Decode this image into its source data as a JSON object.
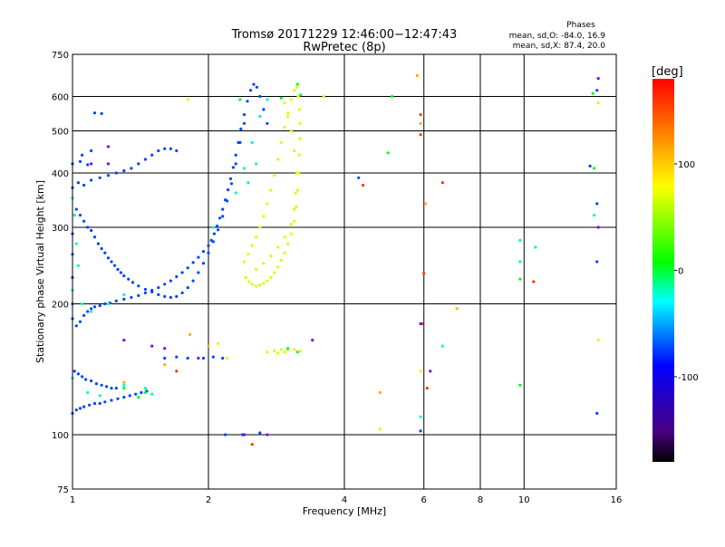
{
  "chart_data": {
    "type": "scatter",
    "title": "Tromsø 20171229 12:46:00−12:47:43",
    "subtitle": "RwPretec (8p)",
    "xlabel": "Frequency [MHz]",
    "ylabel": "Stationary phase Virtual Height [km]",
    "x_scale": "log",
    "y_scale": "log",
    "xlim": [
      1,
      16
    ],
    "ylim": [
      75,
      750
    ],
    "x_ticks": [
      1,
      2,
      4,
      6,
      8,
      10,
      16
    ],
    "x_tick_labels": [
      "1",
      "2",
      "4",
      "6",
      "8",
      "10",
      "16"
    ],
    "y_ticks": [
      75,
      100,
      200,
      300,
      400,
      500,
      600,
      750
    ],
    "y_tick_labels": [
      "75",
      "100",
      "200",
      "300",
      "400",
      "500",
      "600",
      "750"
    ],
    "grid": true,
    "info": {
      "heading": "Phases",
      "line1": "mean, sd,O: -84.0, 16.9",
      "line2": "mean, sd,X:  87.4, 20.0"
    },
    "colorbar": {
      "label": "[deg]",
      "range": [
        -180,
        180
      ],
      "ticks": [
        100,
        0,
        -100
      ],
      "tick_labels": [
        "100",
        "0",
        "-100"
      ],
      "colors": [
        "#000000",
        "#4b0082",
        "#0000ff",
        "#00ffff",
        "#00ff00",
        "#ffff00",
        "#ff8000",
        "#ff0000"
      ]
    },
    "series": [
      {
        "color_phase": -95,
        "points": [
          [
            1.0,
            290
          ],
          [
            1.0,
            260
          ],
          [
            1.0,
            230
          ],
          [
            1.0,
            200
          ],
          [
            1.0,
            185
          ],
          [
            1.02,
            178
          ],
          [
            1.04,
            182
          ],
          [
            1.06,
            188
          ],
          [
            1.08,
            192
          ],
          [
            1.1,
            195
          ],
          [
            1.12,
            197
          ],
          [
            1.15,
            198
          ],
          [
            1.18,
            200
          ],
          [
            1.21,
            201
          ],
          [
            1.25,
            203
          ],
          [
            1.3,
            205
          ],
          [
            1.35,
            207
          ],
          [
            1.4,
            209
          ],
          [
            1.45,
            212
          ],
          [
            1.5,
            215
          ],
          [
            1.55,
            218
          ],
          [
            1.6,
            222
          ],
          [
            1.65,
            226
          ],
          [
            1.7,
            231
          ],
          [
            1.75,
            236
          ],
          [
            1.8,
            242
          ],
          [
            1.85,
            249
          ],
          [
            1.9,
            256
          ],
          [
            1.95,
            264
          ],
          [
            2.0,
            272
          ],
          [
            2.03,
            280
          ],
          [
            2.06,
            290
          ],
          [
            2.09,
            302
          ],
          [
            2.12,
            315
          ],
          [
            2.15,
            330
          ],
          [
            2.18,
            347
          ],
          [
            2.21,
            366
          ],
          [
            2.24,
            388
          ],
          [
            2.27,
            412
          ],
          [
            2.3,
            440
          ],
          [
            2.33,
            470
          ],
          [
            2.36,
            505
          ],
          [
            2.4,
            545
          ],
          [
            2.44,
            585
          ],
          [
            2.48,
            620
          ],
          [
            2.52,
            640
          ],
          [
            2.56,
            630
          ],
          [
            2.6,
            600
          ],
          [
            2.65,
            560
          ],
          [
            2.7,
            520
          ],
          [
            1.0,
            370
          ],
          [
            1.03,
            380
          ],
          [
            1.06,
            375
          ],
          [
            1.1,
            385
          ],
          [
            1.15,
            390
          ],
          [
            1.2,
            395
          ],
          [
            1.25,
            400
          ],
          [
            1.3,
            405
          ],
          [
            1.35,
            410
          ],
          [
            1.4,
            420
          ],
          [
            1.45,
            430
          ],
          [
            1.5,
            440
          ],
          [
            1.55,
            450
          ],
          [
            1.6,
            455
          ],
          [
            1.65,
            455
          ],
          [
            1.7,
            450
          ],
          [
            1.01,
            140
          ],
          [
            1.03,
            138
          ],
          [
            1.05,
            136
          ],
          [
            1.07,
            134
          ],
          [
            1.1,
            133
          ],
          [
            1.13,
            131
          ],
          [
            1.16,
            130
          ],
          [
            1.19,
            129
          ],
          [
            1.22,
            128
          ],
          [
            1.25,
            128
          ],
          [
            1.0,
            112
          ],
          [
            1.02,
            114
          ],
          [
            1.04,
            115
          ],
          [
            1.06,
            116
          ],
          [
            1.09,
            117
          ],
          [
            1.12,
            118
          ],
          [
            1.15,
            118
          ],
          [
            1.18,
            119
          ],
          [
            1.22,
            120
          ],
          [
            1.26,
            121
          ],
          [
            1.3,
            122
          ],
          [
            1.34,
            123
          ],
          [
            1.38,
            124
          ],
          [
            1.42,
            125
          ],
          [
            1.46,
            126
          ],
          [
            1.0,
            420
          ],
          [
            1.04,
            425
          ],
          [
            1.08,
            418
          ],
          [
            1.12,
            550
          ],
          [
            1.16,
            548
          ],
          [
            2.18,
            100
          ],
          [
            2.38,
            100
          ],
          [
            2.6,
            101
          ],
          [
            1.6,
            150
          ],
          [
            1.7,
            151
          ],
          [
            1.8,
            150
          ],
          [
            1.95,
            150
          ],
          [
            2.05,
            151
          ],
          [
            2.15,
            150
          ],
          [
            4.3,
            390
          ],
          [
            5.9,
            102
          ],
          [
            14.5,
            620
          ],
          [
            14.5,
            250
          ],
          [
            14.5,
            112
          ],
          [
            14.0,
            415
          ],
          [
            14.5,
            340
          ],
          [
            1.05,
            440
          ],
          [
            1.1,
            450
          ],
          [
            1.02,
            330
          ],
          [
            1.04,
            320
          ],
          [
            1.06,
            310
          ],
          [
            1.08,
            300
          ],
          [
            1.1,
            295
          ],
          [
            1.12,
            285
          ],
          [
            1.14,
            275
          ],
          [
            1.16,
            268
          ],
          [
            1.18,
            262
          ],
          [
            1.2,
            255
          ],
          [
            1.22,
            250
          ],
          [
            1.24,
            245
          ],
          [
            1.26,
            240
          ],
          [
            1.28,
            236
          ],
          [
            1.3,
            232
          ],
          [
            1.33,
            228
          ],
          [
            1.36,
            224
          ],
          [
            1.4,
            220
          ],
          [
            1.45,
            216
          ],
          [
            1.5,
            213
          ],
          [
            1.55,
            210
          ],
          [
            1.6,
            208
          ],
          [
            1.65,
            207
          ],
          [
            1.7,
            208
          ],
          [
            1.75,
            212
          ],
          [
            1.8,
            218
          ],
          [
            1.85,
            226
          ],
          [
            1.9,
            236
          ],
          [
            1.95,
            248
          ],
          [
            2.0,
            262
          ],
          [
            2.05,
            278
          ],
          [
            2.1,
            296
          ],
          [
            2.15,
            318
          ],
          [
            2.2,
            345
          ],
          [
            2.25,
            378
          ],
          [
            2.3,
            420
          ],
          [
            2.35,
            470
          ],
          [
            2.4,
            520
          ]
        ]
      },
      {
        "color_phase": -20,
        "points": [
          [
            1.0,
            350
          ],
          [
            1.01,
            320
          ],
          [
            1.02,
            275
          ],
          [
            1.03,
            245
          ],
          [
            1.0,
            215
          ],
          [
            1.05,
            200
          ],
          [
            1.1,
            192
          ],
          [
            1.2,
            200
          ],
          [
            1.3,
            210
          ],
          [
            1.0,
            135
          ],
          [
            1.08,
            125
          ],
          [
            1.15,
            123
          ],
          [
            1.3,
            130
          ],
          [
            1.45,
            128
          ],
          [
            1.5,
            124
          ],
          [
            2.3,
            360
          ],
          [
            2.4,
            410
          ],
          [
            2.5,
            470
          ],
          [
            2.6,
            540
          ],
          [
            2.7,
            590
          ],
          [
            2.55,
            420
          ],
          [
            2.45,
            380
          ],
          [
            2.05,
            300
          ],
          [
            9.8,
            280
          ],
          [
            9.8,
            250
          ],
          [
            10.6,
            270
          ],
          [
            14.3,
            320
          ],
          [
            6.6,
            160
          ],
          [
            5.9,
            110
          ]
        ]
      },
      {
        "color_phase": 95,
        "points": [
          [
            2.42,
            230
          ],
          [
            2.46,
            225
          ],
          [
            2.5,
            222
          ],
          [
            2.55,
            220
          ],
          [
            2.6,
            221
          ],
          [
            2.65,
            223
          ],
          [
            2.7,
            226
          ],
          [
            2.75,
            230
          ],
          [
            2.8,
            236
          ],
          [
            2.85,
            243
          ],
          [
            2.9,
            252
          ],
          [
            2.95,
            262
          ],
          [
            3.0,
            275
          ],
          [
            3.05,
            290
          ],
          [
            3.1,
            310
          ],
          [
            3.13,
            335
          ],
          [
            3.15,
            365
          ],
          [
            3.17,
            400
          ],
          [
            3.18,
            440
          ],
          [
            3.19,
            480
          ],
          [
            3.19,
            520
          ],
          [
            3.18,
            560
          ],
          [
            3.16,
            600
          ],
          [
            3.14,
            630
          ],
          [
            2.4,
            250
          ],
          [
            2.45,
            260
          ],
          [
            2.5,
            272
          ],
          [
            2.55,
            285
          ],
          [
            2.6,
            300
          ],
          [
            2.65,
            318
          ],
          [
            2.7,
            340
          ],
          [
            2.75,
            365
          ],
          [
            2.8,
            395
          ],
          [
            2.85,
            430
          ],
          [
            2.9,
            470
          ],
          [
            2.95,
            510
          ],
          [
            3.0,
            550
          ],
          [
            3.05,
            590
          ],
          [
            3.1,
            620
          ],
          [
            2.55,
            240
          ],
          [
            2.65,
            248
          ],
          [
            2.75,
            258
          ],
          [
            2.85,
            270
          ],
          [
            2.95,
            285
          ],
          [
            3.05,
            305
          ],
          [
            3.1,
            330
          ],
          [
            3.12,
            360
          ],
          [
            3.14,
            400
          ],
          [
            3.1,
            450
          ],
          [
            3.05,
            500
          ],
          [
            3.0,
            540
          ],
          [
            2.95,
            580
          ],
          [
            2.7,
            155
          ],
          [
            2.8,
            156
          ],
          [
            2.9,
            157
          ],
          [
            3.0,
            157
          ],
          [
            3.1,
            157
          ],
          [
            3.2,
            156
          ],
          [
            2.85,
            154
          ],
          [
            2.95,
            155
          ],
          [
            4.8,
            103
          ],
          [
            5.9,
            140
          ],
          [
            14.6,
            580
          ],
          [
            14.6,
            165
          ],
          [
            1.8,
            590
          ],
          [
            2.1,
            162
          ],
          [
            2.2,
            150
          ],
          [
            3.6,
            600
          ]
        ]
      },
      {
        "color_phase": 25,
        "points": [
          [
            3.15,
            640
          ],
          [
            3.2,
            605
          ],
          [
            2.35,
            590
          ],
          [
            2.9,
            595
          ],
          [
            3.0,
            158
          ],
          [
            3.15,
            155
          ],
          [
            5.1,
            600
          ],
          [
            5.0,
            445
          ],
          [
            9.8,
            228
          ],
          [
            9.8,
            130
          ],
          [
            14.2,
            610
          ],
          [
            14.3,
            410
          ],
          [
            1.45,
            125
          ],
          [
            1.3,
            128
          ],
          [
            1.4,
            122
          ]
        ]
      },
      {
        "color_phase": 165,
        "points": [
          [
            5.9,
            545
          ],
          [
            5.9,
            490
          ],
          [
            5.95,
            180
          ],
          [
            6.0,
            235
          ],
          [
            6.6,
            380
          ],
          [
            10.5,
            225
          ],
          [
            4.4,
            375
          ],
          [
            1.7,
            140
          ],
          [
            2.5,
            95
          ],
          [
            6.1,
            128
          ]
        ]
      },
      {
        "color_phase": 130,
        "points": [
          [
            5.8,
            670
          ],
          [
            5.9,
            520
          ],
          [
            6.05,
            340
          ],
          [
            7.1,
            195
          ],
          [
            1.3,
            132
          ],
          [
            1.6,
            145
          ],
          [
            4.8,
            125
          ],
          [
            1.82,
            170
          ],
          [
            2.0,
            160
          ]
        ]
      },
      {
        "color_phase": -150,
        "points": [
          [
            5.9,
            180
          ],
          [
            6.2,
            140
          ],
          [
            14.6,
            660
          ],
          [
            14.6,
            300
          ],
          [
            1.2,
            420
          ],
          [
            1.3,
            165
          ],
          [
            1.5,
            160
          ],
          [
            1.6,
            158
          ],
          [
            1.9,
            150
          ],
          [
            3.4,
            165
          ],
          [
            2.4,
            100
          ],
          [
            2.7,
            100
          ],
          [
            1.1,
            420
          ],
          [
            1.2,
            460
          ]
        ]
      }
    ]
  }
}
